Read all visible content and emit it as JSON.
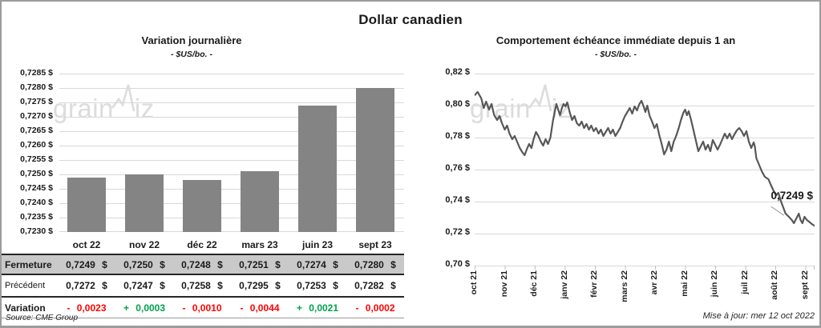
{
  "page_title": "Dollar canadien",
  "left_chart": {
    "title": "Variation journalière",
    "subtitle": "- $US/bo. -",
    "watermark": {
      "part1": "grain",
      "part2": "iz"
    },
    "source": "Source: CME Group"
  },
  "right_chart": {
    "title": "Comportement échéance immédiate depuis 1 an",
    "subtitle": "- $US/bo. -",
    "watermark": {
      "part1": "grain",
      "part2": "iz"
    },
    "annotation_label": "0,7249 $",
    "updated_label": "Mise à jour: mer 12 oct 2022"
  },
  "table": {
    "columns": [
      "oct 22",
      "nov 22",
      "déc 22",
      "mars 23",
      "juin 23",
      "sept 23"
    ],
    "rows": [
      {
        "label": "Fermeture",
        "type": "fermeture",
        "values": [
          "0,7249 $",
          "0,7250 $",
          "0,7248 $",
          "0,7251 $",
          "0,7274 $",
          "0,7280 $"
        ]
      },
      {
        "label": "Précédent",
        "type": "precedent",
        "values": [
          "0,7272 $",
          "0,7247 $",
          "0,7258 $",
          "0,7295 $",
          "0,7253 $",
          "0,7282 $"
        ]
      },
      {
        "label": "Variation",
        "type": "variation",
        "values": [
          "- 0,0023",
          "+ 0,0003",
          "- 0,0010",
          "- 0,0044",
          "+ 0,0021",
          "- 0,0002"
        ],
        "value_colors": [
          "red",
          "green",
          "red",
          "red",
          "green",
          "red"
        ]
      }
    ]
  },
  "chart_data": [
    {
      "type": "bar",
      "title": "Variation journalière",
      "subtitle": "- $US/bo. -",
      "categories": [
        "oct 22",
        "nov 22",
        "déc 22",
        "mars 23",
        "juin 23",
        "sept 23"
      ],
      "values": [
        0.7249,
        0.725,
        0.7248,
        0.7251,
        0.7274,
        0.728
      ],
      "ylim": [
        0.723,
        0.7285
      ],
      "yticks": [
        0.7285,
        0.728,
        0.7275,
        0.727,
        0.7265,
        0.726,
        0.7255,
        0.725,
        0.7245,
        0.724,
        0.7235,
        0.723
      ],
      "ytick_labels": [
        "0,7285 $",
        "0,7280 $",
        "0,7275 $",
        "0,7270 $",
        "0,7265 $",
        "0,7260 $",
        "0,7255 $",
        "0,7250 $",
        "0,7245 $",
        "0,7240 $",
        "0,7235 $",
        "0,7230 $"
      ],
      "bar_color": "#848484",
      "grid_color": "#d9d9d9",
      "grid": true,
      "legend": false
    },
    {
      "type": "line",
      "title": "Comportement échéance immédiate depuis 1 an",
      "subtitle": "- $US/bo. -",
      "x_tick_labels": [
        "oct 21",
        "nov 21",
        "déc 21",
        "janv 22",
        "févr 22",
        "mars 22",
        "avr 22",
        "mai 22",
        "juin 22",
        "juil 22",
        "août 22",
        "sept 22"
      ],
      "ylim": [
        0.7,
        0.82
      ],
      "yticks": [
        0.82,
        0.8,
        0.78,
        0.76,
        0.74,
        0.72,
        0.7
      ],
      "ytick_labels": [
        "0,82 $",
        "0,80 $",
        "0,78 $",
        "0,76 $",
        "0,74 $",
        "0,72 $",
        "0,70 $"
      ],
      "last_value": 0.7249,
      "last_value_label": "0,7249 $",
      "line_color": "#575757",
      "grid_color": "#d9d9d9",
      "grid": true,
      "legend": false,
      "points": [
        [
          0.0,
          0.8065
        ],
        [
          0.1,
          0.8085
        ],
        [
          0.22,
          0.8045
        ],
        [
          0.3,
          0.7985
        ],
        [
          0.38,
          0.8025
        ],
        [
          0.48,
          0.7975
        ],
        [
          0.56,
          0.801
        ],
        [
          0.65,
          0.794
        ],
        [
          0.75,
          0.791
        ],
        [
          0.83,
          0.7935
        ],
        [
          0.91,
          0.789
        ],
        [
          1.0,
          0.785
        ],
        [
          1.08,
          0.7875
        ],
        [
          1.16,
          0.7825
        ],
        [
          1.25,
          0.779
        ],
        [
          1.33,
          0.781
        ],
        [
          1.41,
          0.7775
        ],
        [
          1.5,
          0.7735
        ],
        [
          1.58,
          0.771
        ],
        [
          1.66,
          0.769
        ],
        [
          1.73,
          0.7725
        ],
        [
          1.81,
          0.776
        ],
        [
          1.89,
          0.7735
        ],
        [
          1.96,
          0.779
        ],
        [
          2.04,
          0.7835
        ],
        [
          2.12,
          0.781
        ],
        [
          2.2,
          0.7775
        ],
        [
          2.28,
          0.775
        ],
        [
          2.36,
          0.779
        ],
        [
          2.44,
          0.776
        ],
        [
          2.52,
          0.78
        ],
        [
          2.6,
          0.79
        ],
        [
          2.66,
          0.796
        ],
        [
          2.72,
          0.801
        ],
        [
          2.78,
          0.7975
        ],
        [
          2.84,
          0.794
        ],
        [
          2.9,
          0.7985
        ],
        [
          2.96,
          0.801
        ],
        [
          3.02,
          0.7995
        ],
        [
          3.08,
          0.802
        ],
        [
          3.16,
          0.796
        ],
        [
          3.24,
          0.791
        ],
        [
          3.32,
          0.7935
        ],
        [
          3.4,
          0.789
        ],
        [
          3.48,
          0.7875
        ],
        [
          3.56,
          0.79
        ],
        [
          3.64,
          0.786
        ],
        [
          3.72,
          0.7885
        ],
        [
          3.8,
          0.785
        ],
        [
          3.88,
          0.7875
        ],
        [
          3.96,
          0.784
        ],
        [
          4.04,
          0.786
        ],
        [
          4.12,
          0.7825
        ],
        [
          4.2,
          0.785
        ],
        [
          4.28,
          0.781
        ],
        [
          4.36,
          0.7835
        ],
        [
          4.44,
          0.786
        ],
        [
          4.52,
          0.7825
        ],
        [
          4.6,
          0.785
        ],
        [
          4.68,
          0.781
        ],
        [
          4.76,
          0.7835
        ],
        [
          4.84,
          0.786
        ],
        [
          4.92,
          0.79
        ],
        [
          5.0,
          0.7935
        ],
        [
          5.08,
          0.796
        ],
        [
          5.16,
          0.7985
        ],
        [
          5.24,
          0.795
        ],
        [
          5.32,
          0.7995
        ],
        [
          5.4,
          0.797
        ],
        [
          5.48,
          0.801
        ],
        [
          5.55,
          0.803
        ],
        [
          5.62,
          0.7995
        ],
        [
          5.68,
          0.796
        ],
        [
          5.74,
          0.8
        ],
        [
          5.82,
          0.7935
        ],
        [
          5.9,
          0.79
        ],
        [
          5.98,
          0.786
        ],
        [
          6.06,
          0.7885
        ],
        [
          6.14,
          0.7815
        ],
        [
          6.22,
          0.776
        ],
        [
          6.3,
          0.7695
        ],
        [
          6.38,
          0.7725
        ],
        [
          6.46,
          0.7775
        ],
        [
          6.54,
          0.7715
        ],
        [
          6.62,
          0.7775
        ],
        [
          6.7,
          0.781
        ],
        [
          6.78,
          0.7855
        ],
        [
          6.86,
          0.791
        ],
        [
          6.94,
          0.7955
        ],
        [
          7.0,
          0.7975
        ],
        [
          7.06,
          0.794
        ],
        [
          7.12,
          0.7965
        ],
        [
          7.2,
          0.791
        ],
        [
          7.28,
          0.7845
        ],
        [
          7.36,
          0.778
        ],
        [
          7.44,
          0.7715
        ],
        [
          7.52,
          0.7745
        ],
        [
          7.6,
          0.7775
        ],
        [
          7.68,
          0.7725
        ],
        [
          7.76,
          0.7755
        ],
        [
          7.84,
          0.7715
        ],
        [
          7.92,
          0.7785
        ],
        [
          8.0,
          0.7755
        ],
        [
          8.08,
          0.7725
        ],
        [
          8.16,
          0.7755
        ],
        [
          8.24,
          0.779
        ],
        [
          8.32,
          0.7825
        ],
        [
          8.4,
          0.7795
        ],
        [
          8.48,
          0.7825
        ],
        [
          8.56,
          0.779
        ],
        [
          8.64,
          0.782
        ],
        [
          8.72,
          0.7845
        ],
        [
          8.8,
          0.786
        ],
        [
          8.88,
          0.784
        ],
        [
          8.96,
          0.781
        ],
        [
          9.04,
          0.784
        ],
        [
          9.12,
          0.7775
        ],
        [
          9.2,
          0.7735
        ],
        [
          9.28,
          0.777
        ],
        [
          9.32,
          0.7745
        ],
        [
          9.37,
          0.767
        ],
        [
          9.45,
          0.7635
        ],
        [
          9.55,
          0.759
        ],
        [
          9.65,
          0.7555
        ],
        [
          9.77,
          0.754
        ],
        [
          9.85,
          0.7505
        ],
        [
          9.95,
          0.7465
        ],
        [
          10.03,
          0.744
        ],
        [
          10.1,
          0.7455
        ],
        [
          10.18,
          0.7405
        ],
        [
          10.26,
          0.7365
        ],
        [
          10.34,
          0.7325
        ],
        [
          10.45,
          0.7305
        ],
        [
          10.55,
          0.7285
        ],
        [
          10.62,
          0.7265
        ],
        [
          10.7,
          0.7295
        ],
        [
          10.78,
          0.7325
        ],
        [
          10.84,
          0.7285
        ],
        [
          10.9,
          0.7265
        ],
        [
          10.97,
          0.7305
        ],
        [
          11.05,
          0.7285
        ],
        [
          11.12,
          0.7275
        ],
        [
          11.2,
          0.7262
        ],
        [
          11.3,
          0.7249
        ]
      ]
    }
  ],
  "colors": {
    "red": "#fe0000",
    "green": "#00a14b",
    "bar": "#848484",
    "line": "#575757",
    "gridline": "#d9d9d9",
    "fermeture_row_bg": "#c9c9c9",
    "watermark": "#dcdcdc",
    "frame_border": "#9c9c9c"
  }
}
